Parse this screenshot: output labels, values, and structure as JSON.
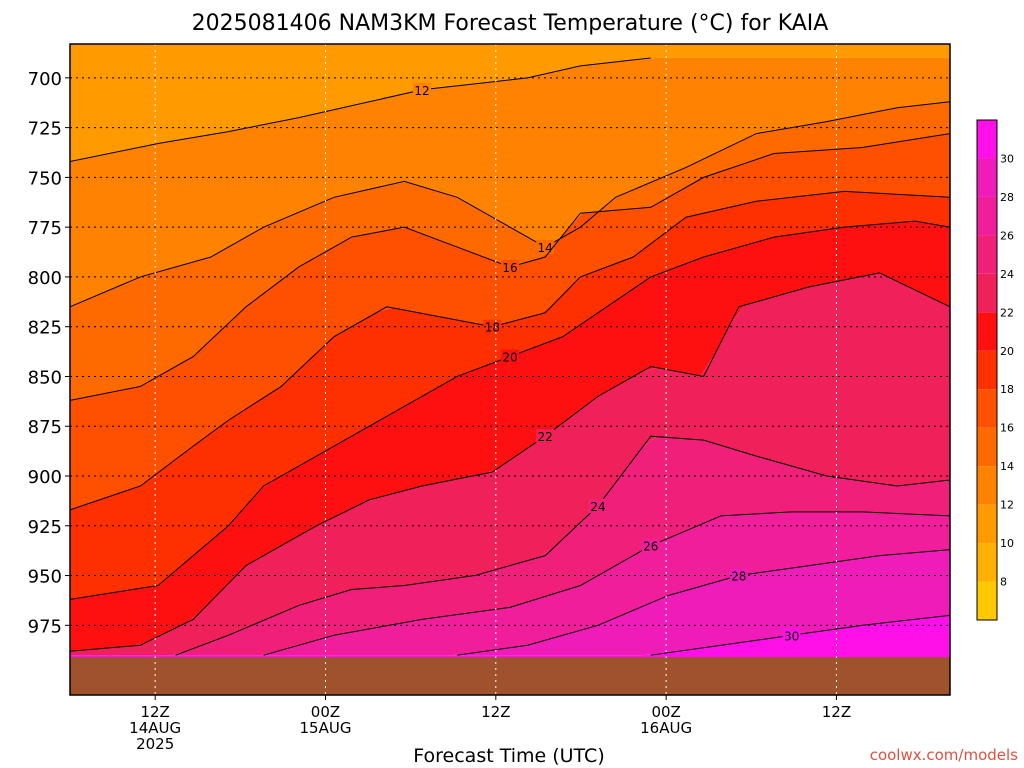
{
  "chart_data": {
    "type": "heatmap",
    "title": "2025081406 NAM3KM Forecast Temperature (°C) for KAIA",
    "xlabel": "Forecast Time (UTC)",
    "ylabel": "",
    "credit": "coolwx.com/models",
    "y_axis": {
      "ticks": [
        700,
        725,
        750,
        775,
        800,
        825,
        850,
        875,
        900,
        925,
        950,
        975
      ],
      "ylim": [
        1010,
        683
      ],
      "reversed": true
    },
    "x_axis": {
      "start": "2025-08-14 06Z",
      "end": "2025-08-16 20Z",
      "ticks": [
        {
          "time": "2025-08-14 12Z",
          "lines": [
            "12Z",
            "14AUG",
            "2025"
          ]
        },
        {
          "time": "2025-08-15 00Z",
          "lines": [
            "00Z",
            "15AUG"
          ]
        },
        {
          "time": "2025-08-15 12Z",
          "lines": [
            "12Z"
          ]
        },
        {
          "time": "2025-08-16 00Z",
          "lines": [
            "00Z",
            "16AUG"
          ]
        },
        {
          "time": "2025-08-16 12Z",
          "lines": [
            "12Z"
          ]
        }
      ]
    },
    "colorbar": {
      "levels": [
        6,
        8,
        10,
        12,
        14,
        16,
        18,
        20,
        22,
        24,
        26,
        28,
        30,
        32
      ],
      "labels": [
        "8",
        "10",
        "12",
        "14",
        "16",
        "18",
        "20",
        "22",
        "24",
        "26",
        "28",
        "30"
      ],
      "colors": [
        "#ffc800",
        "#ffb000",
        "#ff9a00",
        "#ff8200",
        "#ff6a00",
        "#ff5000",
        "#ff3000",
        "#ff1010",
        "#f0205a",
        "#f0207a",
        "#f01e9a",
        "#f01cba",
        "#ff10e8"
      ]
    },
    "isotherms": [
      {
        "value": 12,
        "points": [
          [
            0,
            742
          ],
          [
            10,
            733
          ],
          [
            18,
            727
          ],
          [
            26,
            720
          ],
          [
            34,
            712
          ],
          [
            40,
            706
          ],
          [
            48,
            702
          ],
          [
            52,
            700
          ],
          [
            58,
            694
          ],
          [
            66,
            690
          ]
        ]
      },
      {
        "value": 14,
        "points": [
          [
            0,
            815
          ],
          [
            8,
            800
          ],
          [
            16,
            790
          ],
          [
            22,
            775
          ],
          [
            30,
            760
          ],
          [
            38,
            752
          ],
          [
            44,
            760
          ],
          [
            50,
            775
          ],
          [
            54,
            785
          ],
          [
            58,
            775
          ],
          [
            62,
            760
          ],
          [
            70,
            745
          ],
          [
            78,
            728
          ],
          [
            86,
            722
          ],
          [
            94,
            715
          ],
          [
            100,
            712
          ]
        ]
      },
      {
        "value": 16,
        "points": [
          [
            0,
            862
          ],
          [
            8,
            855
          ],
          [
            14,
            840
          ],
          [
            20,
            815
          ],
          [
            26,
            795
          ],
          [
            32,
            780
          ],
          [
            38,
            775
          ],
          [
            44,
            785
          ],
          [
            50,
            795
          ],
          [
            54,
            790
          ],
          [
            58,
            768
          ],
          [
            66,
            765
          ],
          [
            72,
            750
          ],
          [
            80,
            738
          ],
          [
            90,
            735
          ],
          [
            100,
            728
          ]
        ]
      },
      {
        "value": 18,
        "points": [
          [
            0,
            917
          ],
          [
            8,
            905
          ],
          [
            14,
            885
          ],
          [
            18,
            872
          ],
          [
            24,
            855
          ],
          [
            30,
            830
          ],
          [
            36,
            815
          ],
          [
            42,
            820
          ],
          [
            48,
            825
          ],
          [
            54,
            818
          ],
          [
            58,
            800
          ],
          [
            64,
            790
          ],
          [
            70,
            770
          ],
          [
            78,
            762
          ],
          [
            88,
            757
          ],
          [
            100,
            760
          ]
        ]
      },
      {
        "value": 20,
        "points": [
          [
            0,
            962
          ],
          [
            10,
            955
          ],
          [
            18,
            925
          ],
          [
            22,
            905
          ],
          [
            26,
            895
          ],
          [
            32,
            880
          ],
          [
            38,
            865
          ],
          [
            44,
            850
          ],
          [
            50,
            840
          ],
          [
            56,
            830
          ],
          [
            62,
            812
          ],
          [
            66,
            800
          ],
          [
            72,
            790
          ],
          [
            80,
            780
          ],
          [
            88,
            775
          ],
          [
            96,
            772
          ],
          [
            100,
            775
          ]
        ]
      },
      {
        "value": 22,
        "points": [
          [
            0,
            988
          ],
          [
            8,
            985
          ],
          [
            14,
            972
          ],
          [
            20,
            945
          ],
          [
            28,
            925
          ],
          [
            34,
            912
          ],
          [
            40,
            905
          ],
          [
            48,
            898
          ],
          [
            54,
            880
          ],
          [
            60,
            860
          ],
          [
            66,
            845
          ],
          [
            72,
            850
          ],
          [
            76,
            815
          ],
          [
            84,
            805
          ],
          [
            92,
            798
          ],
          [
            100,
            815
          ]
        ]
      },
      {
        "value": 24,
        "points": [
          [
            12,
            990
          ],
          [
            18,
            980
          ],
          [
            26,
            965
          ],
          [
            32,
            957
          ],
          [
            38,
            955
          ],
          [
            46,
            950
          ],
          [
            54,
            940
          ],
          [
            60,
            915
          ],
          [
            66,
            880
          ],
          [
            72,
            882
          ],
          [
            78,
            890
          ],
          [
            86,
            900
          ],
          [
            94,
            905
          ],
          [
            100,
            902
          ]
        ]
      },
      {
        "value": 26,
        "points": [
          [
            22,
            990
          ],
          [
            30,
            980
          ],
          [
            40,
            972
          ],
          [
            50,
            966
          ],
          [
            58,
            955
          ],
          [
            66,
            935
          ],
          [
            74,
            920
          ],
          [
            82,
            918
          ],
          [
            90,
            918
          ],
          [
            100,
            920
          ]
        ]
      },
      {
        "value": 28,
        "points": [
          [
            44,
            990
          ],
          [
            52,
            985
          ],
          [
            60,
            975
          ],
          [
            68,
            960
          ],
          [
            76,
            950
          ],
          [
            84,
            945
          ],
          [
            92,
            940
          ],
          [
            100,
            937
          ]
        ]
      },
      {
        "value": 30,
        "points": [
          [
            66,
            990
          ],
          [
            74,
            985
          ],
          [
            82,
            980
          ],
          [
            90,
            975
          ],
          [
            100,
            970
          ]
        ]
      }
    ]
  }
}
